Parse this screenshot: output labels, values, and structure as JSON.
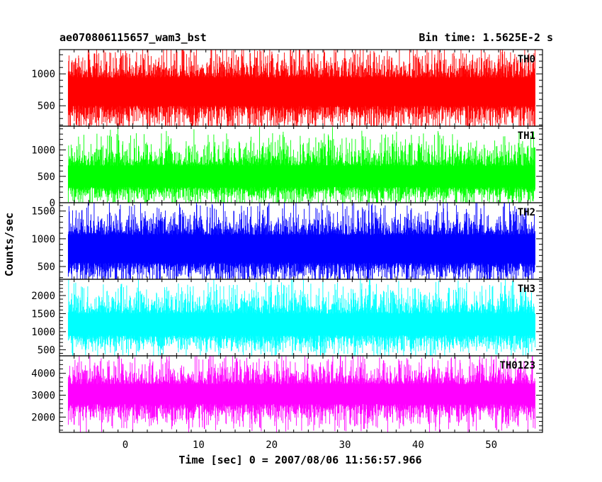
{
  "header": {
    "title": "ae070806115657_wam3_bst",
    "bin_time": "Bin time: 1.5625E-2 s"
  },
  "chart_data": {
    "type": "line",
    "xlabel": "Time [sec] 0 = 2007/08/06 11:56:57.966",
    "ylabel": "Counts/sec",
    "xlim": [
      -9,
      57
    ],
    "x_start": -7.8,
    "x_end": 56,
    "x_ticks": [
      0,
      10,
      20,
      30,
      40,
      50
    ],
    "panels": [
      {
        "name": "TH0",
        "color": "#ff0000",
        "ylim": [
          180,
          1380
        ],
        "yticks": [
          500,
          1000
        ],
        "base": 720,
        "band": 220,
        "spike_hi": 620,
        "spike_lo": 520
      },
      {
        "name": "TH1",
        "color": "#00ff00",
        "ylim": [
          0,
          1450
        ],
        "yticks": [
          0,
          500,
          1000
        ],
        "base": 500,
        "band": 200,
        "spike_hi": 750,
        "spike_lo": 450
      },
      {
        "name": "TH2",
        "color": "#0000ff",
        "ylim": [
          270,
          1650
        ],
        "yticks": [
          500,
          1000,
          1500
        ],
        "base": 820,
        "band": 250,
        "spike_hi": 700,
        "spike_lo": 520
      },
      {
        "name": "TH3",
        "color": "#00ffff",
        "ylim": [
          330,
          2450
        ],
        "yticks": [
          500,
          1000,
          1500,
          2000
        ],
        "base": 1200,
        "band": 300,
        "spike_hi": 1100,
        "spike_lo": 700
      },
      {
        "name": "TH0123",
        "color": "#ff00ff",
        "ylim": [
          1300,
          4800
        ],
        "yticks": [
          2000,
          3000,
          4000
        ],
        "base": 3050,
        "band": 450,
        "spike_hi": 1600,
        "spike_lo": 1400
      }
    ]
  }
}
